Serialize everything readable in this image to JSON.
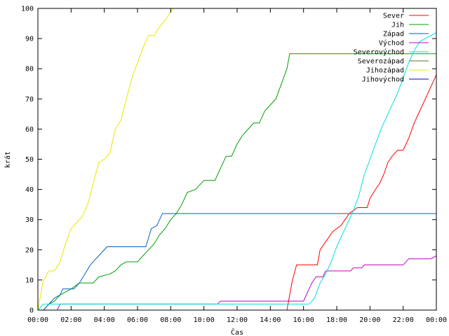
{
  "chart_data": {
    "type": "line",
    "xlabel": "Čas",
    "ylabel": "krát",
    "xlim": [
      "00:00",
      "24:00"
    ],
    "ylim": [
      0,
      100
    ],
    "x_ticks": [
      "00:00",
      "02:00",
      "04:00",
      "06:00",
      "08:00",
      "10:00",
      "12:00",
      "14:00",
      "16:00",
      "18:00",
      "20:00",
      "22:00",
      "00:00"
    ],
    "y_ticks": [
      0,
      10,
      20,
      30,
      40,
      50,
      60,
      70,
      80,
      90,
      100
    ],
    "grid": false,
    "legend_position": "top-right",
    "series": [
      {
        "name": "Sever",
        "color": "#ff0000",
        "points": [
          [
            "00:00",
            0
          ],
          [
            "15:00",
            0
          ],
          [
            "15:10",
            5
          ],
          [
            "15:20",
            10
          ],
          [
            "15:35",
            15
          ],
          [
            "16:50",
            15
          ],
          [
            "17:00",
            20
          ],
          [
            "17:15",
            22
          ],
          [
            "17:30",
            24
          ],
          [
            "17:45",
            26
          ],
          [
            "18:00",
            27
          ],
          [
            "18:15",
            28
          ],
          [
            "18:30",
            30
          ],
          [
            "18:45",
            32
          ],
          [
            "19:00",
            33
          ],
          [
            "19:15",
            34
          ],
          [
            "19:50",
            34
          ],
          [
            "20:00",
            37
          ],
          [
            "20:20",
            40
          ],
          [
            "20:35",
            42
          ],
          [
            "20:50",
            45
          ],
          [
            "21:05",
            49
          ],
          [
            "21:20",
            51
          ],
          [
            "21:40",
            53
          ],
          [
            "22:00",
            53
          ],
          [
            "22:20",
            57
          ],
          [
            "22:40",
            62
          ],
          [
            "23:00",
            66
          ],
          [
            "23:20",
            70
          ],
          [
            "23:40",
            74
          ],
          [
            "24:00",
            78
          ]
        ]
      },
      {
        "name": "Jih",
        "color": "#00a000",
        "points": [
          [
            "00:00",
            0
          ],
          [
            "00:20",
            0
          ],
          [
            "00:40",
            2
          ],
          [
            "01:00",
            3
          ],
          [
            "01:20",
            5
          ],
          [
            "02:00",
            7
          ],
          [
            "02:30",
            9
          ],
          [
            "03:20",
            9
          ],
          [
            "03:40",
            11
          ],
          [
            "04:20",
            12
          ],
          [
            "04:40",
            13
          ],
          [
            "05:00",
            15
          ],
          [
            "05:20",
            16
          ],
          [
            "06:00",
            16
          ],
          [
            "06:20",
            18
          ],
          [
            "06:40",
            20
          ],
          [
            "07:00",
            22
          ],
          [
            "07:20",
            25
          ],
          [
            "07:40",
            27
          ],
          [
            "08:00",
            30
          ],
          [
            "08:20",
            32
          ],
          [
            "08:40",
            35
          ],
          [
            "09:00",
            39
          ],
          [
            "09:30",
            40
          ],
          [
            "10:00",
            43
          ],
          [
            "10:40",
            43
          ],
          [
            "11:00",
            47
          ],
          [
            "11:20",
            51
          ],
          [
            "11:40",
            51
          ],
          [
            "12:00",
            55
          ],
          [
            "12:20",
            58
          ],
          [
            "12:40",
            60
          ],
          [
            "13:00",
            62
          ],
          [
            "13:20",
            62
          ],
          [
            "13:40",
            66
          ],
          [
            "14:00",
            68
          ],
          [
            "14:20",
            70
          ],
          [
            "14:40",
            75
          ],
          [
            "15:00",
            80
          ],
          [
            "15:10",
            85
          ],
          [
            "24:00",
            85
          ]
        ]
      },
      {
        "name": "Západ",
        "color": "#0060c0",
        "points": [
          [
            "00:00",
            0
          ],
          [
            "00:20",
            0
          ],
          [
            "00:40",
            2
          ],
          [
            "01:00",
            4
          ],
          [
            "01:20",
            5
          ],
          [
            "01:30",
            7
          ],
          [
            "02:10",
            7
          ],
          [
            "02:30",
            9
          ],
          [
            "02:50",
            12
          ],
          [
            "03:10",
            15
          ],
          [
            "03:30",
            17
          ],
          [
            "03:50",
            19
          ],
          [
            "04:10",
            21
          ],
          [
            "06:30",
            21
          ],
          [
            "06:40",
            24
          ],
          [
            "06:50",
            27
          ],
          [
            "07:10",
            28
          ],
          [
            "07:30",
            32
          ],
          [
            "24:00",
            32
          ]
        ]
      },
      {
        "name": "Východ",
        "color": "#c000c0",
        "points": [
          [
            "00:00",
            0
          ],
          [
            "01:10",
            0
          ],
          [
            "01:20",
            2
          ],
          [
            "10:50",
            2
          ],
          [
            "11:00",
            3
          ],
          [
            "16:00",
            3
          ],
          [
            "16:15",
            6
          ],
          [
            "16:30",
            9
          ],
          [
            "16:45",
            11
          ],
          [
            "17:10",
            11
          ],
          [
            "17:20",
            13
          ],
          [
            "18:50",
            13
          ],
          [
            "19:00",
            14
          ],
          [
            "19:30",
            14
          ],
          [
            "19:40",
            15
          ],
          [
            "22:00",
            15
          ],
          [
            "22:20",
            17
          ],
          [
            "23:40",
            17
          ],
          [
            "24:00",
            18
          ]
        ]
      },
      {
        "name": "Severovýchod",
        "color": "#00e0e0",
        "points": [
          [
            "00:00",
            0
          ],
          [
            "00:20",
            2
          ],
          [
            "16:20",
            2
          ],
          [
            "16:40",
            4
          ],
          [
            "17:00",
            9
          ],
          [
            "17:20",
            12
          ],
          [
            "17:40",
            16
          ],
          [
            "18:00",
            21
          ],
          [
            "18:20",
            25
          ],
          [
            "18:40",
            29
          ],
          [
            "19:00",
            33
          ],
          [
            "19:20",
            38
          ],
          [
            "19:40",
            45
          ],
          [
            "20:00",
            50
          ],
          [
            "20:20",
            55
          ],
          [
            "20:40",
            60
          ],
          [
            "21:00",
            64
          ],
          [
            "21:20",
            68
          ],
          [
            "21:40",
            72
          ],
          [
            "22:00",
            77
          ],
          [
            "22:20",
            82
          ],
          [
            "22:40",
            86
          ],
          [
            "23:00",
            89
          ],
          [
            "23:20",
            90
          ],
          [
            "23:40",
            91
          ],
          [
            "24:00",
            92
          ]
        ]
      },
      {
        "name": "Severozápad",
        "color": "#607030",
        "points": []
      },
      {
        "name": "Jihozápad",
        "color": "#e8e800",
        "points": [
          [
            "00:00",
            0
          ],
          [
            "00:10",
            5
          ],
          [
            "00:20",
            10
          ],
          [
            "00:40",
            13
          ],
          [
            "01:00",
            13
          ],
          [
            "01:20",
            16
          ],
          [
            "01:40",
            22
          ],
          [
            "02:00",
            27
          ],
          [
            "02:20",
            29
          ],
          [
            "02:40",
            31
          ],
          [
            "03:00",
            35
          ],
          [
            "03:20",
            42
          ],
          [
            "03:40",
            49
          ],
          [
            "04:00",
            50
          ],
          [
            "04:20",
            52
          ],
          [
            "04:40",
            60
          ],
          [
            "05:00",
            63
          ],
          [
            "05:20",
            70
          ],
          [
            "05:40",
            77
          ],
          [
            "06:00",
            82
          ],
          [
            "06:20",
            87
          ],
          [
            "06:40",
            91
          ],
          [
            "07:00",
            91
          ],
          [
            "07:20",
            94
          ],
          [
            "07:40",
            96
          ],
          [
            "08:00",
            99
          ],
          [
            "08:10",
            100
          ]
        ]
      },
      {
        "name": "Jihovýchod",
        "color": "#0000c0",
        "points": []
      }
    ]
  }
}
